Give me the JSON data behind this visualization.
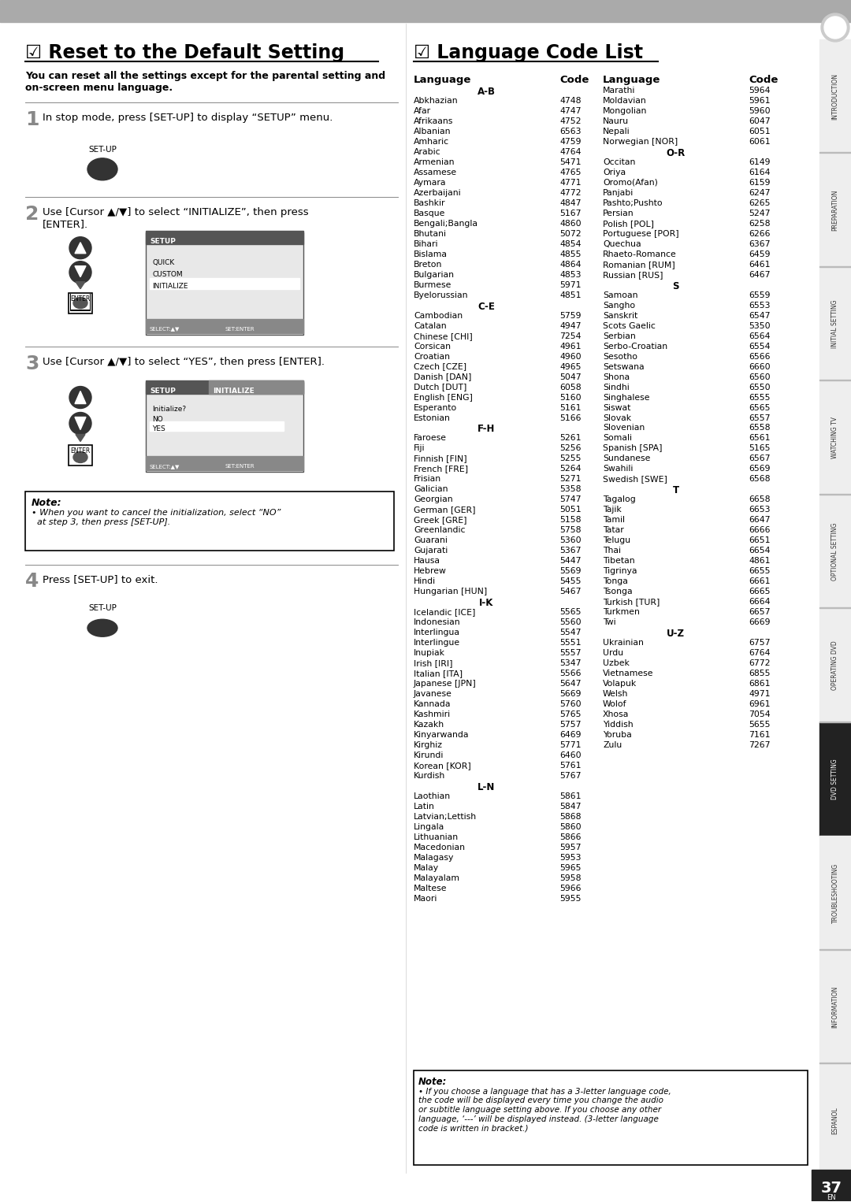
{
  "bg_color": "#ffffff",
  "page_number": "37",
  "sidebar_labels": [
    "INTRODUCTION",
    "PREPARATION",
    "INITIAL SETTING",
    "WATCHING TV",
    "OPTIONAL SETTING",
    "OPERATING DVD",
    "DVD SETTING",
    "TROUBLESHOOTING",
    "INFORMATION",
    "ESPANOL"
  ],
  "section1_title": "☑ Reset to the Default Setting",
  "section1_subtitle": "You can reset all the settings except for the parental setting and\non-screen menu language.",
  "step1_text": "In stop mode, press [SET-UP] to display “SETUP” menu.",
  "step1_label": "SET-UP",
  "step2_text": "Use [Cursor ▲/▼] to select “INITIALIZE”, then press\n[ENTER].",
  "step3_text": "Use [Cursor ▲/▼] to select “YES”, then press [ENTER].",
  "step4_text": "Press [SET-UP] to exit.",
  "step4_label": "SET-UP",
  "note_title": "Note:",
  "note_text": "• When you want to cancel the initialization, select “NO”\n  at step 3, then press [SET-UP].",
  "setup_menu1": [
    "QUICK",
    "CUSTOM",
    "INITIALIZE"
  ],
  "setup_menu2_title": "SETUP",
  "setup_menu2_sub": "INITIALIZE",
  "setup_menu2_items": [
    "Initialize?",
    "NO",
    "YES"
  ],
  "setup_menu2_selected": "YES",
  "section2_title": "☑ Language Code List",
  "lang_col1_header": "Language",
  "lang_col2_header": "Code",
  "lang_col3_header": "Language",
  "lang_col4_header": "Code",
  "lang_section_ab": "A-B",
  "lang_ab": [
    [
      "Abkhazian",
      "4748"
    ],
    [
      "Afar",
      "4747"
    ],
    [
      "Afrikaans",
      "4752"
    ],
    [
      "Albanian",
      "6563"
    ],
    [
      "Amharic",
      "4759"
    ],
    [
      "Arabic",
      "4764"
    ],
    [
      "Armenian",
      "5471"
    ],
    [
      "Assamese",
      "4765"
    ],
    [
      "Aymara",
      "4771"
    ],
    [
      "Azerbaijani",
      "4772"
    ],
    [
      "Bashkir",
      "4847"
    ],
    [
      "Basque",
      "5167"
    ],
    [
      "Bengali;Bangla",
      "4860"
    ],
    [
      "Bhutani",
      "5072"
    ],
    [
      "Bihari",
      "4854"
    ],
    [
      "Bislama",
      "4855"
    ],
    [
      "Breton",
      "4864"
    ],
    [
      "Bulgarian",
      "4853"
    ],
    [
      "Burmese",
      "5971"
    ],
    [
      "Byelorussian",
      "4851"
    ]
  ],
  "lang_section_ce": "C-E",
  "lang_ce": [
    [
      "Cambodian",
      "5759"
    ],
    [
      "Catalan",
      "4947"
    ],
    [
      "Chinese [CHI]",
      "7254"
    ],
    [
      "Corsican",
      "4961"
    ],
    [
      "Croatian",
      "4960"
    ],
    [
      "Czech [CZE]",
      "4965"
    ],
    [
      "Danish [DAN]",
      "5047"
    ],
    [
      "Dutch [DUT]",
      "6058"
    ],
    [
      "English [ENG]",
      "5160"
    ],
    [
      "Esperanto",
      "5161"
    ],
    [
      "Estonian",
      "5166"
    ]
  ],
  "lang_section_fh": "F-H",
  "lang_fh": [
    [
      "Faroese",
      "5261"
    ],
    [
      "Fiji",
      "5256"
    ],
    [
      "Finnish [FIN]",
      "5255"
    ],
    [
      "French [FRE]",
      "5264"
    ],
    [
      "Frisian",
      "5271"
    ],
    [
      "Galician",
      "5358"
    ],
    [
      "Georgian",
      "5747"
    ],
    [
      "German [GER]",
      "5051"
    ],
    [
      "Greek [GRE]",
      "5158"
    ],
    [
      "Greenlandic",
      "5758"
    ],
    [
      "Guarani",
      "5360"
    ],
    [
      "Gujarati",
      "5367"
    ],
    [
      "Hausa",
      "5447"
    ],
    [
      "Hebrew",
      "5569"
    ],
    [
      "Hindi",
      "5455"
    ],
    [
      "Hungarian [HUN]",
      "5467"
    ]
  ],
  "lang_section_ik": "I-K",
  "lang_ik": [
    [
      "Icelandic [ICE]",
      "5565"
    ],
    [
      "Indonesian",
      "5560"
    ],
    [
      "Interlingua",
      "5547"
    ],
    [
      "Interlingue",
      "5551"
    ],
    [
      "Inupiak",
      "5557"
    ],
    [
      "Irish [IRI]",
      "5347"
    ],
    [
      "Italian [ITA]",
      "5566"
    ],
    [
      "Japanese [JPN]",
      "5647"
    ],
    [
      "Javanese",
      "5669"
    ],
    [
      "Kannada",
      "5760"
    ],
    [
      "Kashmiri",
      "5765"
    ],
    [
      "Kazakh",
      "5757"
    ],
    [
      "Kinyarwanda",
      "6469"
    ],
    [
      "Kirghiz",
      "5771"
    ],
    [
      "Kirundi",
      "6460"
    ],
    [
      "Korean [KOR]",
      "5761"
    ],
    [
      "Kurdish",
      "5767"
    ]
  ],
  "lang_section_ln": "L-N",
  "lang_ln": [
    [
      "Laothian",
      "5861"
    ],
    [
      "Latin",
      "5847"
    ],
    [
      "Latvian;Lettish",
      "5868"
    ],
    [
      "Lingala",
      "5860"
    ],
    [
      "Lithuanian",
      "5866"
    ],
    [
      "Macedonian",
      "5957"
    ],
    [
      "Malagasy",
      "5953"
    ],
    [
      "Malay",
      "5965"
    ],
    [
      "Malayalam",
      "5958"
    ],
    [
      "Maltese",
      "5966"
    ],
    [
      "Maori",
      "5955"
    ]
  ],
  "lang_right": [
    [
      "Marathi",
      "5964"
    ],
    [
      "Moldavian",
      "5961"
    ],
    [
      "Mongolian",
      "5960"
    ],
    [
      "Nauru",
      "6047"
    ],
    [
      "Nepali",
      "6051"
    ],
    [
      "Norwegian [NOR]",
      "6061"
    ]
  ],
  "lang_section_or": "O-R",
  "lang_or": [
    [
      "Occitan",
      "6149"
    ],
    [
      "Oriya",
      "6164"
    ],
    [
      "Oromo(Afan)",
      "6159"
    ],
    [
      "Panjabi",
      "6247"
    ],
    [
      "Pashto;Pushto",
      "6265"
    ],
    [
      "Persian",
      "5247"
    ],
    [
      "Polish [POL]",
      "6258"
    ],
    [
      "Portuguese [POR]",
      "6266"
    ],
    [
      "Quechua",
      "6367"
    ],
    [
      "Rhaeto-Romance",
      "6459"
    ],
    [
      "Romanian [RUM]",
      "6461"
    ],
    [
      "Russian [RUS]",
      "6467"
    ]
  ],
  "lang_section_s": "S",
  "lang_s": [
    [
      "Samoan",
      "6559"
    ],
    [
      "Sangho",
      "6553"
    ],
    [
      "Sanskrit",
      "6547"
    ],
    [
      "Scots Gaelic",
      "5350"
    ],
    [
      "Serbian",
      "6564"
    ],
    [
      "Serbo-Croatian",
      "6554"
    ],
    [
      "Sesotho",
      "6566"
    ],
    [
      "Setswana",
      "6660"
    ],
    [
      "Shona",
      "6560"
    ],
    [
      "Sindhi",
      "6550"
    ],
    [
      "Singhalese",
      "6555"
    ],
    [
      "Siswat",
      "6565"
    ],
    [
      "Slovak",
      "6557"
    ],
    [
      "Slovenian",
      "6558"
    ],
    [
      "Somali",
      "6561"
    ],
    [
      "Spanish [SPA]",
      "5165"
    ],
    [
      "Sundanese",
      "6567"
    ],
    [
      "Swahili",
      "6569"
    ],
    [
      "Swedish [SWE]",
      "6568"
    ]
  ],
  "lang_section_t": "T",
  "lang_t": [
    [
      "Tagalog",
      "6658"
    ],
    [
      "Tajik",
      "6653"
    ],
    [
      "Tamil",
      "6647"
    ],
    [
      "Tatar",
      "6666"
    ],
    [
      "Telugu",
      "6651"
    ],
    [
      "Thai",
      "6654"
    ],
    [
      "Tibetan",
      "4861"
    ],
    [
      "Tigrinya",
      "6655"
    ],
    [
      "Tonga",
      "6661"
    ],
    [
      "Tsonga",
      "6665"
    ],
    [
      "Turkish [TUR]",
      "6664"
    ],
    [
      "Turkmen",
      "6657"
    ],
    [
      "Twi",
      "6669"
    ]
  ],
  "lang_section_uz": "U-Z",
  "lang_uz": [
    [
      "Ukrainian",
      "6757"
    ],
    [
      "Urdu",
      "6764"
    ],
    [
      "Uzbek",
      "6772"
    ],
    [
      "Vietnamese",
      "6855"
    ],
    [
      "Volapuk",
      "6861"
    ],
    [
      "Welsh",
      "4971"
    ],
    [
      "Wolof",
      "6961"
    ],
    [
      "Xhosa",
      "7054"
    ],
    [
      "Yiddish",
      "5655"
    ],
    [
      "Yoruba",
      "7161"
    ],
    [
      "Zulu",
      "7267"
    ]
  ],
  "note2_text": "If you choose a language that has a 3-letter language code,\nthe code will be displayed every time you change the audio\nor subtitle language setting above. If you choose any other\nlanguage, ‘---’ will be displayed instead. (3-letter language\ncode is written in bracket.)"
}
